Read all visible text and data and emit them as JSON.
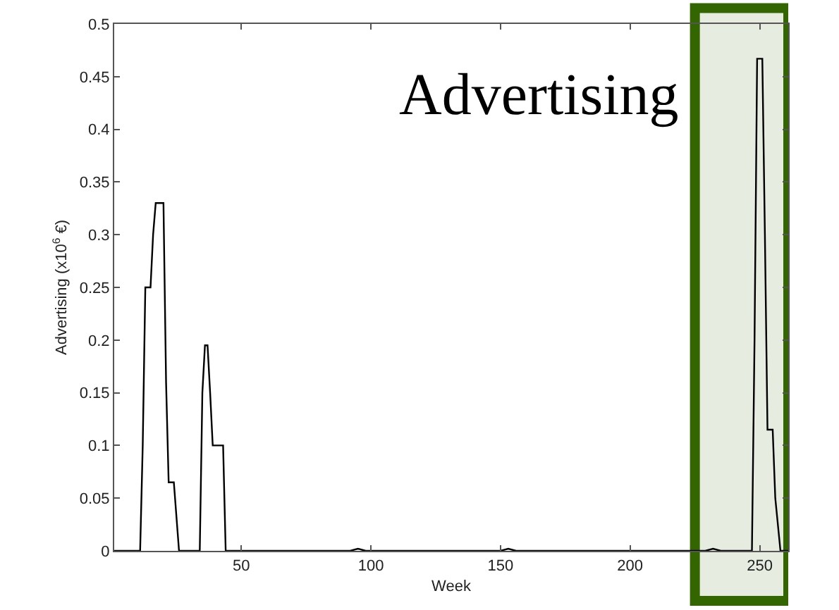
{
  "chart_data": {
    "type": "line",
    "xlabel": "Week",
    "ylabel": "Advertising (x10$^{6}$ €)",
    "annotations": [
      "Advertising"
    ],
    "x": [
      1,
      11,
      12,
      13,
      15,
      16,
      17,
      20,
      21,
      22,
      24,
      26,
      34,
      35,
      36,
      37,
      38,
      39,
      43,
      44,
      92,
      95,
      98,
      150,
      153,
      156,
      229,
      232,
      235,
      247,
      248,
      249,
      251,
      252,
      253,
      255,
      256,
      258,
      261
    ],
    "series": [
      {
        "color": "#000000",
        "values": [
          0,
          0,
          0.1,
          0.25,
          0.25,
          0.3,
          0.33,
          0.33,
          0.16,
          0.065,
          0.065,
          0,
          0,
          0.15,
          0.195,
          0.195,
          0.15,
          0.1,
          0.1,
          0,
          0,
          0.002,
          0,
          0,
          0.002,
          0,
          0,
          0.002,
          0,
          0,
          0.2,
          0.467,
          0.467,
          0.3,
          0.115,
          0.115,
          0.05,
          0,
          0
        ]
      }
    ],
    "xlim": [
      1,
      261
    ],
    "xticks": [
      50,
      100,
      150,
      200,
      250
    ],
    "ylim": [
      0,
      0.5
    ],
    "yticks": [
      0,
      0.05,
      0.1,
      0.15,
      0.2,
      0.25,
      0.3,
      0.35,
      0.4,
      0.45,
      0.5
    ],
    "bands": [
      {
        "axis": "x",
        "from": 225,
        "to": 261,
        "color": "#336600"
      }
    ],
    "grid": false
  }
}
